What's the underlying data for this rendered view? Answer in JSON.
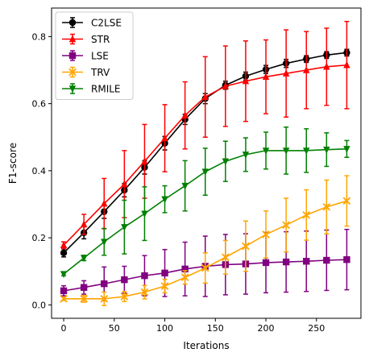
{
  "chart_data": {
    "type": "line",
    "xlabel": "Iterations",
    "ylabel": "F1-score",
    "xlim": [
      -12,
      294
    ],
    "ylim": [
      -0.04,
      0.885
    ],
    "xticks": [
      0,
      50,
      100,
      150,
      200,
      250
    ],
    "yticks": [
      0.0,
      0.2,
      0.4,
      0.6,
      0.8
    ],
    "xtick_labels": [
      "0",
      "50",
      "100",
      "150",
      "200",
      "250"
    ],
    "ytick_labels": [
      "0.0",
      "0.2",
      "0.4",
      "0.6",
      "0.8"
    ],
    "grid": false,
    "legend_position": "top-left",
    "x": [
      0,
      20,
      40,
      60,
      80,
      100,
      120,
      140,
      160,
      180,
      200,
      220,
      240,
      260,
      280
    ],
    "series": [
      {
        "name": "C2LSE",
        "color": "#000000",
        "marker": "circle",
        "values": [
          0.155,
          0.215,
          0.278,
          0.342,
          0.41,
          0.482,
          0.553,
          0.615,
          0.655,
          0.682,
          0.702,
          0.72,
          0.733,
          0.745,
          0.752
        ],
        "errors": [
          0.012,
          0.018,
          0.02,
          0.02,
          0.02,
          0.02,
          0.015,
          0.015,
          0.012,
          0.012,
          0.012,
          0.012,
          0.01,
          0.01,
          0.01
        ]
      },
      {
        "name": "STR",
        "color": "#ff0000",
        "marker": "triangle",
        "values": [
          0.178,
          0.24,
          0.302,
          0.36,
          0.428,
          0.497,
          0.565,
          0.62,
          0.652,
          0.667,
          0.68,
          0.69,
          0.7,
          0.71,
          0.715
        ],
        "errors": [
          0.01,
          0.03,
          0.075,
          0.1,
          0.11,
          0.1,
          0.1,
          0.12,
          0.12,
          0.12,
          0.11,
          0.13,
          0.115,
          0.115,
          0.13
        ]
      },
      {
        "name": "LSE",
        "color": "#800080",
        "marker": "square",
        "values": [
          0.042,
          0.052,
          0.063,
          0.075,
          0.087,
          0.095,
          0.107,
          0.115,
          0.12,
          0.122,
          0.126,
          0.128,
          0.13,
          0.133,
          0.135
        ],
        "errors": [
          0.015,
          0.02,
          0.05,
          0.04,
          0.06,
          0.07,
          0.08,
          0.09,
          0.09,
          0.09,
          0.09,
          0.09,
          0.09,
          0.09,
          0.09
        ]
      },
      {
        "name": "TRV",
        "color": "#ffa500",
        "marker": "x",
        "values": [
          0.018,
          0.018,
          0.018,
          0.025,
          0.038,
          0.056,
          0.082,
          0.11,
          0.142,
          0.175,
          0.21,
          0.238,
          0.268,
          0.292,
          0.31
        ],
        "errors": [
          0.005,
          0.01,
          0.02,
          0.015,
          0.02,
          0.02,
          0.02,
          0.045,
          0.05,
          0.075,
          0.07,
          0.08,
          0.075,
          0.08,
          0.075
        ]
      },
      {
        "name": "RMILE",
        "color": "#008000",
        "marker": "triangle-down",
        "values": [
          0.092,
          0.14,
          0.188,
          0.232,
          0.272,
          0.315,
          0.355,
          0.397,
          0.428,
          0.448,
          0.46,
          0.46,
          0.46,
          0.463,
          0.465
        ],
        "errors": [
          0.005,
          0.008,
          0.04,
          0.08,
          0.08,
          0.04,
          0.075,
          0.07,
          0.06,
          0.05,
          0.055,
          0.07,
          0.065,
          0.05,
          0.025
        ]
      }
    ]
  }
}
